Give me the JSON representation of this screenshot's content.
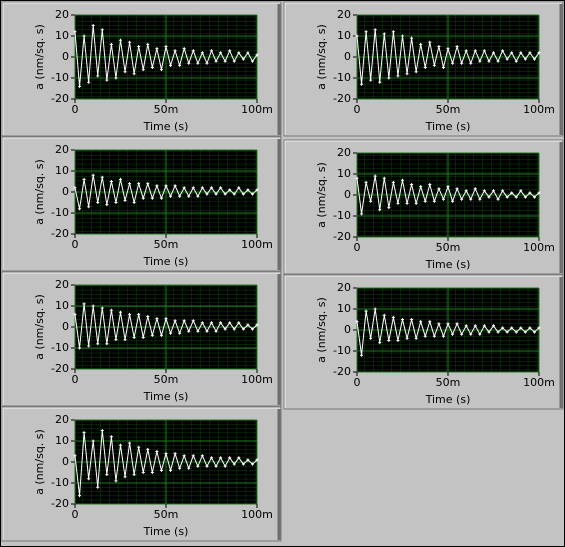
{
  "chart_data": [
    {
      "type": "line",
      "y_label": "a (nm/sq. s)",
      "x_label": "Time (s)",
      "color": "#ffffff",
      "markers": true,
      "grid": true,
      "xlim": [
        0,
        0.1
      ],
      "ylim": [
        -20,
        20
      ],
      "xticks": [
        0,
        {
          "value": 0.05,
          "label": "50m"
        },
        {
          "value": 0.1,
          "label": "100m"
        }
      ],
      "yticks": [
        -20,
        -10,
        0,
        10,
        20
      ],
      "x": [
        0,
        0.0025,
        0.005,
        0.0075,
        0.01,
        0.0125,
        0.015,
        0.0175,
        0.02,
        0.0225,
        0.025,
        0.0275,
        0.03,
        0.0325,
        0.035,
        0.0375,
        0.04,
        0.0425,
        0.045,
        0.0475,
        0.05,
        0.0525,
        0.055,
        0.0575,
        0.06,
        0.0625,
        0.065,
        0.0675,
        0.07,
        0.0725,
        0.075,
        0.0775,
        0.08,
        0.0825,
        0.085,
        0.0875,
        0.09,
        0.0925,
        0.095,
        0.0975,
        0.1
      ],
      "values": [
        12,
        -14,
        10,
        -12,
        15,
        -9,
        13,
        -11,
        6,
        -10,
        8,
        -7,
        7,
        -8,
        5,
        -6,
        6,
        -5,
        4,
        -6,
        5,
        -4,
        3,
        -4,
        4,
        -3,
        3,
        -3,
        2,
        -3,
        3,
        -2,
        2,
        -2,
        3,
        -2,
        2,
        -1,
        2,
        -2,
        1
      ]
    },
    {
      "type": "line",
      "y_label": "a (nm/sq. s)",
      "x_label": "Time (s)",
      "color": "#ffffff",
      "markers": true,
      "grid": true,
      "xlim": [
        0,
        0.1
      ],
      "ylim": [
        -20,
        20
      ],
      "xticks": [
        0,
        {
          "value": 0.05,
          "label": "50m"
        },
        {
          "value": 0.1,
          "label": "100m"
        }
      ],
      "yticks": [
        -20,
        -10,
        0,
        10,
        20
      ],
      "x": [
        0,
        0.0025,
        0.005,
        0.0075,
        0.01,
        0.0125,
        0.015,
        0.0175,
        0.02,
        0.0225,
        0.025,
        0.0275,
        0.03,
        0.0325,
        0.035,
        0.0375,
        0.04,
        0.0425,
        0.045,
        0.0475,
        0.05,
        0.0525,
        0.055,
        0.0575,
        0.06,
        0.0625,
        0.065,
        0.0675,
        0.07,
        0.0725,
        0.075,
        0.0775,
        0.08,
        0.0825,
        0.085,
        0.0875,
        0.09,
        0.0925,
        0.095,
        0.0975,
        0.1
      ],
      "values": [
        10,
        -13,
        12,
        -11,
        13,
        -12,
        11,
        -10,
        12,
        -9,
        10,
        -8,
        9,
        -7,
        6,
        -5,
        7,
        -4,
        5,
        -5,
        4,
        -3,
        5,
        -3,
        3,
        -3,
        3,
        -2,
        3,
        -2,
        2,
        -2,
        3,
        -1,
        2,
        -2,
        2,
        -1,
        2,
        -1,
        2
      ]
    },
    {
      "type": "line",
      "y_label": "a (nm/sq. s)",
      "x_label": "Time (s)",
      "color": "#ffffff",
      "markers": true,
      "grid": true,
      "xlim": [
        0,
        0.1
      ],
      "ylim": [
        -20,
        20
      ],
      "xticks": [
        0,
        {
          "value": 0.05,
          "label": "50m"
        },
        {
          "value": 0.1,
          "label": "100m"
        }
      ],
      "yticks": [
        -20,
        -10,
        0,
        10,
        20
      ],
      "x": [
        0,
        0.0025,
        0.005,
        0.0075,
        0.01,
        0.0125,
        0.015,
        0.0175,
        0.02,
        0.0225,
        0.025,
        0.0275,
        0.03,
        0.0325,
        0.035,
        0.0375,
        0.04,
        0.0425,
        0.045,
        0.0475,
        0.05,
        0.0525,
        0.055,
        0.0575,
        0.06,
        0.0625,
        0.065,
        0.0675,
        0.07,
        0.0725,
        0.075,
        0.0775,
        0.08,
        0.0825,
        0.085,
        0.0875,
        0.09,
        0.0925,
        0.095,
        0.0975,
        0.1
      ],
      "values": [
        2,
        -8,
        6,
        -7,
        8,
        -5,
        7,
        -6,
        5,
        -5,
        6,
        -4,
        4,
        -5,
        4,
        -3,
        4,
        -3,
        3,
        -3,
        3,
        -2,
        3,
        -2,
        2,
        -2,
        2,
        -2,
        2,
        -1,
        2,
        -1,
        2,
        -1,
        1,
        -1,
        2,
        -1,
        1,
        -1,
        1
      ]
    },
    {
      "type": "line",
      "y_label": "a (nm/sq. s)",
      "x_label": "Time (s)",
      "color": "#ffffff",
      "markers": true,
      "grid": true,
      "xlim": [
        0,
        0.1
      ],
      "ylim": [
        -20,
        20
      ],
      "xticks": [
        0,
        {
          "value": 0.05,
          "label": "50m"
        },
        {
          "value": 0.1,
          "label": "100m"
        }
      ],
      "yticks": [
        -20,
        -10,
        0,
        10,
        20
      ],
      "x": [
        0,
        0.0025,
        0.005,
        0.0075,
        0.01,
        0.0125,
        0.015,
        0.0175,
        0.02,
        0.0225,
        0.025,
        0.0275,
        0.03,
        0.0325,
        0.035,
        0.0375,
        0.04,
        0.0425,
        0.045,
        0.0475,
        0.05,
        0.0525,
        0.055,
        0.0575,
        0.06,
        0.0625,
        0.065,
        0.0675,
        0.07,
        0.0725,
        0.075,
        0.0775,
        0.08,
        0.0825,
        0.085,
        0.0875,
        0.09,
        0.0925,
        0.095,
        0.0975,
        0.1
      ],
      "values": [
        8,
        -9,
        6,
        -3,
        9,
        -7,
        8,
        -6,
        6,
        -4,
        7,
        -4,
        5,
        -4,
        4,
        -3,
        5,
        -3,
        3,
        -2,
        4,
        -3,
        3,
        -2,
        2,
        -2,
        3,
        -2,
        2,
        -1,
        2,
        -2,
        2,
        -1,
        1,
        -1,
        2,
        -1,
        1,
        -1,
        1
      ]
    },
    {
      "type": "line",
      "y_label": "a (nm/sq. s)",
      "x_label": "Time (s)",
      "color": "#ffffff",
      "markers": true,
      "grid": true,
      "xlim": [
        0,
        0.1
      ],
      "ylim": [
        -20,
        20
      ],
      "xticks": [
        0,
        {
          "value": 0.05,
          "label": "50m"
        },
        {
          "value": 0.1,
          "label": "100m"
        }
      ],
      "yticks": [
        -20,
        -10,
        0,
        10,
        20
      ],
      "x": [
        0,
        0.0025,
        0.005,
        0.0075,
        0.01,
        0.0125,
        0.015,
        0.0175,
        0.02,
        0.0225,
        0.025,
        0.0275,
        0.03,
        0.0325,
        0.035,
        0.0375,
        0.04,
        0.0425,
        0.045,
        0.0475,
        0.05,
        0.0525,
        0.055,
        0.0575,
        0.06,
        0.0625,
        0.065,
        0.0675,
        0.07,
        0.0725,
        0.075,
        0.0775,
        0.08,
        0.0825,
        0.085,
        0.0875,
        0.09,
        0.0925,
        0.095,
        0.0975,
        0.1
      ],
      "values": [
        6,
        -10,
        11,
        -9,
        10,
        -8,
        9,
        -8,
        8,
        -6,
        7,
        -6,
        6,
        -5,
        6,
        -5,
        5,
        -4,
        4,
        -4,
        4,
        -3,
        3,
        -3,
        3,
        -2,
        3,
        -2,
        2,
        -2,
        2,
        -2,
        2,
        -1,
        2,
        -1,
        2,
        -1,
        1,
        -1,
        1
      ]
    },
    {
      "type": "line",
      "y_label": "a (nm/sq. s)",
      "x_label": "Time (s)",
      "color": "#ffffff",
      "markers": true,
      "grid": true,
      "xlim": [
        0,
        0.1
      ],
      "ylim": [
        -20,
        20
      ],
      "xticks": [
        0,
        {
          "value": 0.05,
          "label": "50m"
        },
        {
          "value": 0.1,
          "label": "100m"
        }
      ],
      "yticks": [
        -20,
        -10,
        0,
        10,
        20
      ],
      "x": [
        0,
        0.0025,
        0.005,
        0.0075,
        0.01,
        0.0125,
        0.015,
        0.0175,
        0.02,
        0.0225,
        0.025,
        0.0275,
        0.03,
        0.0325,
        0.035,
        0.0375,
        0.04,
        0.0425,
        0.045,
        0.0475,
        0.05,
        0.0525,
        0.055,
        0.0575,
        0.06,
        0.0625,
        0.065,
        0.0675,
        0.07,
        0.0725,
        0.075,
        0.0775,
        0.08,
        0.0825,
        0.085,
        0.0875,
        0.09,
        0.0925,
        0.095,
        0.0975,
        0.1
      ],
      "values": [
        4,
        -12,
        9,
        -4,
        10,
        -6,
        7,
        -5,
        6,
        -5,
        5,
        -4,
        5,
        -4,
        4,
        -3,
        4,
        -3,
        3,
        -3,
        3,
        -2,
        3,
        -2,
        2,
        -2,
        2,
        -2,
        2,
        -1,
        2,
        -1,
        1,
        -1,
        1,
        -1,
        1,
        -1,
        1,
        -1,
        1
      ]
    },
    {
      "type": "line",
      "y_label": "a (nm/sq. s)",
      "x_label": "Time (s)",
      "color": "#ffffff",
      "markers": true,
      "grid": true,
      "xlim": [
        0,
        0.1
      ],
      "ylim": [
        -20,
        20
      ],
      "xticks": [
        0,
        {
          "value": 0.05,
          "label": "50m"
        },
        {
          "value": 0.1,
          "label": "100m"
        }
      ],
      "yticks": [
        -20,
        -10,
        0,
        10,
        20
      ],
      "x": [
        0,
        0.0025,
        0.005,
        0.0075,
        0.01,
        0.0125,
        0.015,
        0.0175,
        0.02,
        0.0225,
        0.025,
        0.0275,
        0.03,
        0.0325,
        0.035,
        0.0375,
        0.04,
        0.0425,
        0.045,
        0.0475,
        0.05,
        0.0525,
        0.055,
        0.0575,
        0.06,
        0.0625,
        0.065,
        0.0675,
        0.07,
        0.0725,
        0.075,
        0.0775,
        0.08,
        0.0825,
        0.085,
        0.0875,
        0.09,
        0.0925,
        0.095,
        0.0975,
        0.1
      ],
      "values": [
        3,
        -16,
        14,
        -8,
        10,
        -12,
        15,
        -6,
        12,
        -9,
        8,
        -7,
        9,
        -6,
        7,
        -5,
        6,
        -5,
        5,
        -4,
        4,
        -4,
        4,
        -3,
        3,
        -3,
        3,
        -2,
        3,
        -2,
        2,
        -2,
        2,
        -2,
        2,
        -1,
        2,
        -1,
        1,
        -1,
        1
      ]
    }
  ]
}
